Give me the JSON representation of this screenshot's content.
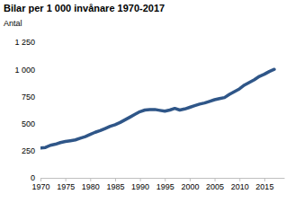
{
  "chart_data": {
    "type": "line",
    "title": "Bilar per 1 000 invånare 1970-2017",
    "subtitle": "Antal",
    "x": [
      1970,
      1971,
      1972,
      1973,
      1974,
      1975,
      1976,
      1977,
      1978,
      1979,
      1980,
      1981,
      1982,
      1983,
      1984,
      1985,
      1986,
      1987,
      1988,
      1989,
      1990,
      1991,
      1992,
      1993,
      1994,
      1995,
      1996,
      1997,
      1998,
      1999,
      2000,
      2001,
      2002,
      2003,
      2004,
      2005,
      2006,
      2007,
      2008,
      2009,
      2010,
      2011,
      2012,
      2013,
      2014,
      2015,
      2016,
      2017
    ],
    "series": [
      {
        "color": "#2f5688",
        "values": [
          275,
          280,
          300,
          310,
          325,
          335,
          342,
          350,
          365,
          380,
          400,
          420,
          435,
          455,
          475,
          490,
          510,
          535,
          560,
          585,
          610,
          625,
          630,
          630,
          622,
          615,
          625,
          640,
          625,
          635,
          650,
          665,
          680,
          690,
          705,
          720,
          730,
          740,
          770,
          795,
          820,
          855,
          880,
          905,
          935,
          955,
          980,
          1000
        ]
      }
    ],
    "xlim": [
      1970,
      2019
    ],
    "xticks": [
      1970,
      1975,
      1980,
      1985,
      1990,
      1995,
      2000,
      2005,
      2010,
      2015
    ],
    "ylim": [
      0,
      1250
    ],
    "yticks": [
      0,
      250,
      500,
      750,
      {
        "value": 1000,
        "label": "1 000"
      },
      {
        "value": 1250,
        "label": "1 250"
      }
    ],
    "grid": false
  }
}
